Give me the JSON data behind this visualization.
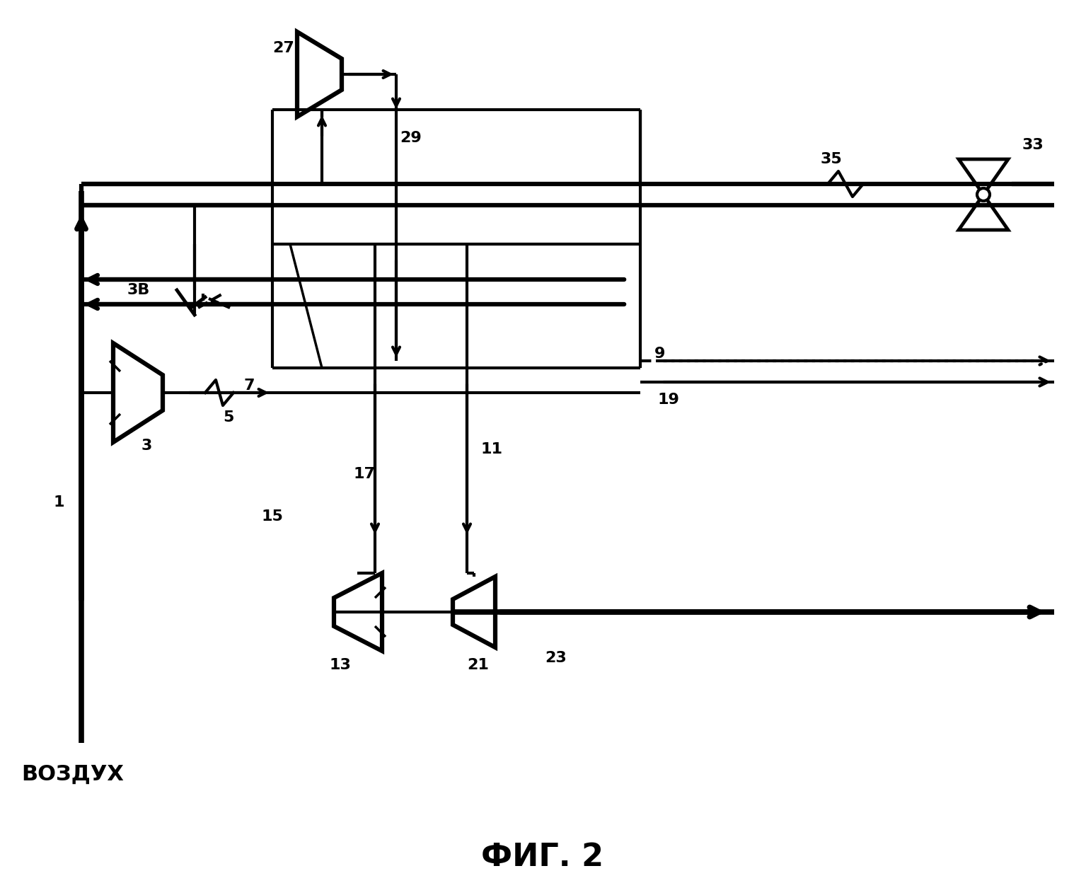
{
  "title": "ФИГ. 2",
  "bg_color": "#ffffff",
  "lc": "#000000",
  "lw": 3.0,
  "lw_thick": 4.5,
  "fontsize_label": 16,
  "fontsize_title": 32,
  "fontsize_vozduh": 22
}
